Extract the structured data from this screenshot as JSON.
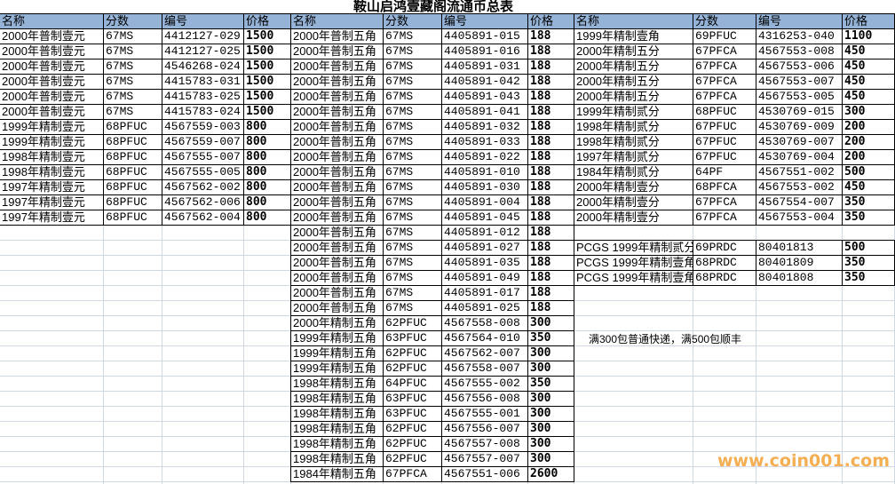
{
  "title": "鞍山启鸿壹藏阁流通币总表",
  "headers": [
    "名称",
    "分数",
    "编号",
    "价格"
  ],
  "note": "满300包普通快递，满500包顺丰",
  "watermark": "www.coin001.com",
  "colors": {
    "header_bg": "#95b3d7",
    "watermark": "#f4a640"
  },
  "blocks": [
    {
      "rows": [
        [
          "2000年普制壹元",
          "67MS",
          "4412127-029",
          "1500"
        ],
        [
          "2000年普制壹元",
          "67MS",
          "4412127-025",
          "1500"
        ],
        [
          "2000年普制壹元",
          "67MS",
          "4546268-024",
          "1500"
        ],
        [
          "2000年普制壹元",
          "67MS",
          "4415783-031",
          "1500"
        ],
        [
          "2000年普制壹元",
          "67MS",
          "4415783-025",
          "1500"
        ],
        [
          "2000年普制壹元",
          "67MS",
          "4415783-024",
          "1500"
        ],
        [
          "1999年精制壹元",
          "68PFUC",
          "4567559-003",
          "800"
        ],
        [
          "1999年精制壹元",
          "68PFUC",
          "4567559-007",
          "800"
        ],
        [
          "1998年精制壹元",
          "68PFUC",
          "4567555-007",
          "800"
        ],
        [
          "1998年精制壹元",
          "68PFUC",
          "4567555-005",
          "800"
        ],
        [
          "1997年精制壹元",
          "68PFUC",
          "4567562-002",
          "800"
        ],
        [
          "1997年精制壹元",
          "68PFUC",
          "4567562-006",
          "800"
        ],
        [
          "1997年精制壹元",
          "68PFUC",
          "4567562-004",
          "800"
        ]
      ]
    },
    {
      "rows": [
        [
          "2000年普制五角",
          "67MS",
          "4405891-015",
          "188"
        ],
        [
          "2000年普制五角",
          "67MS",
          "4405891-016",
          "188"
        ],
        [
          "2000年普制五角",
          "67MS",
          "4405891-031",
          "188"
        ],
        [
          "2000年普制五角",
          "67MS",
          "4405891-042",
          "188"
        ],
        [
          "2000年普制五角",
          "67MS",
          "4405891-043",
          "188"
        ],
        [
          "2000年普制五角",
          "67MS",
          "4405891-041",
          "188"
        ],
        [
          "2000年普制五角",
          "67MS",
          "4405891-032",
          "188"
        ],
        [
          "2000年普制五角",
          "67MS",
          "4405891-033",
          "188"
        ],
        [
          "2000年普制五角",
          "67MS",
          "4405891-022",
          "188"
        ],
        [
          "2000年普制五角",
          "67MS",
          "4405891-010",
          "188"
        ],
        [
          "2000年普制五角",
          "67MS",
          "4405891-030",
          "188"
        ],
        [
          "2000年普制五角",
          "67MS",
          "4405891-004",
          "188"
        ],
        [
          "2000年普制五角",
          "67MS",
          "4405891-045",
          "188"
        ],
        [
          "2000年普制五角",
          "67MS",
          "4405891-012",
          "188"
        ],
        [
          "2000年普制五角",
          "67MS",
          "4405891-027",
          "188"
        ],
        [
          "2000年普制五角",
          "67MS",
          "4405891-035",
          "188"
        ],
        [
          "2000年普制五角",
          "67MS",
          "4405891-049",
          "188"
        ],
        [
          "2000年普制五角",
          "67MS",
          "4405891-017",
          "188"
        ],
        [
          "2000年普制五角",
          "67MS",
          "4405891-025",
          "188"
        ],
        [
          "2000年精制五角",
          "62PFUC",
          "4567558-008",
          "300"
        ],
        [
          "1999年精制五角",
          "63PFUC",
          "4567564-010",
          "350"
        ],
        [
          "1999年精制五角",
          "62PFUC",
          "4567562-007",
          "300"
        ],
        [
          "1999年精制五角",
          "62PFUC",
          "4567558-007",
          "300"
        ],
        [
          "1998年精制五角",
          "64PFUC",
          "4567555-002",
          "350"
        ],
        [
          "1998年精制五角",
          "63PFUC",
          "4567556-008",
          "300"
        ],
        [
          "1998年精制五角",
          "63PFUC",
          "4567555-001",
          "300"
        ],
        [
          "1998年精制五角",
          "62PFUC",
          "4567556-007",
          "300"
        ],
        [
          "1998年精制五角",
          "62PFUC",
          "4567557-008",
          "300"
        ],
        [
          "1998年精制五角",
          "62PFUC",
          "4567557-007",
          "300"
        ],
        [
          "1984年精制五角",
          "67PFCA",
          "4567551-006",
          "2600"
        ]
      ]
    },
    {
      "rows": [
        [
          "1999年精制壹角",
          "69PFUC",
          "4316253-040",
          "1100"
        ],
        [
          "2000年精制五分",
          "67PFCA",
          "4567553-008",
          "450"
        ],
        [
          "2000年精制五分",
          "67PFCA",
          "4567553-006",
          "450"
        ],
        [
          "2000年精制五分",
          "67PFCA",
          "4567553-007",
          "450"
        ],
        [
          "2000年精制五分",
          "67PFCA",
          "4567553-005",
          "450"
        ],
        [
          "1999年精制贰分",
          "68PFUC",
          "4530769-015",
          "300"
        ],
        [
          "1998年精制贰分",
          "67PFUC",
          "4530769-009",
          "200"
        ],
        [
          "1998年精制贰分",
          "67PFUC",
          "4530769-007",
          "200"
        ],
        [
          "1997年精制贰分",
          "67PFUC",
          "4530769-004",
          "200"
        ],
        [
          "1984年精制贰分",
          "64PF",
          "4567551-002",
          "500"
        ],
        [
          "2000年精制壹分",
          "68PFCA",
          "4567553-002",
          "450"
        ],
        [
          "2000年精制壹分",
          "67PFCA",
          "4567554-007",
          "350"
        ],
        [
          "2000年精制壹分",
          "67PFCA",
          "4567553-004",
          "350"
        ]
      ],
      "pcgs_rows": [
        [
          "PCGS 1999年精制贰分",
          "69PRDC",
          "80401813",
          "500"
        ],
        [
          "PCGS 1999年精制壹角",
          "68PRDC",
          "80401809",
          "350"
        ],
        [
          "PCGS 1999年精制壹角",
          "68PRDC",
          "80401808",
          "350"
        ]
      ]
    }
  ]
}
